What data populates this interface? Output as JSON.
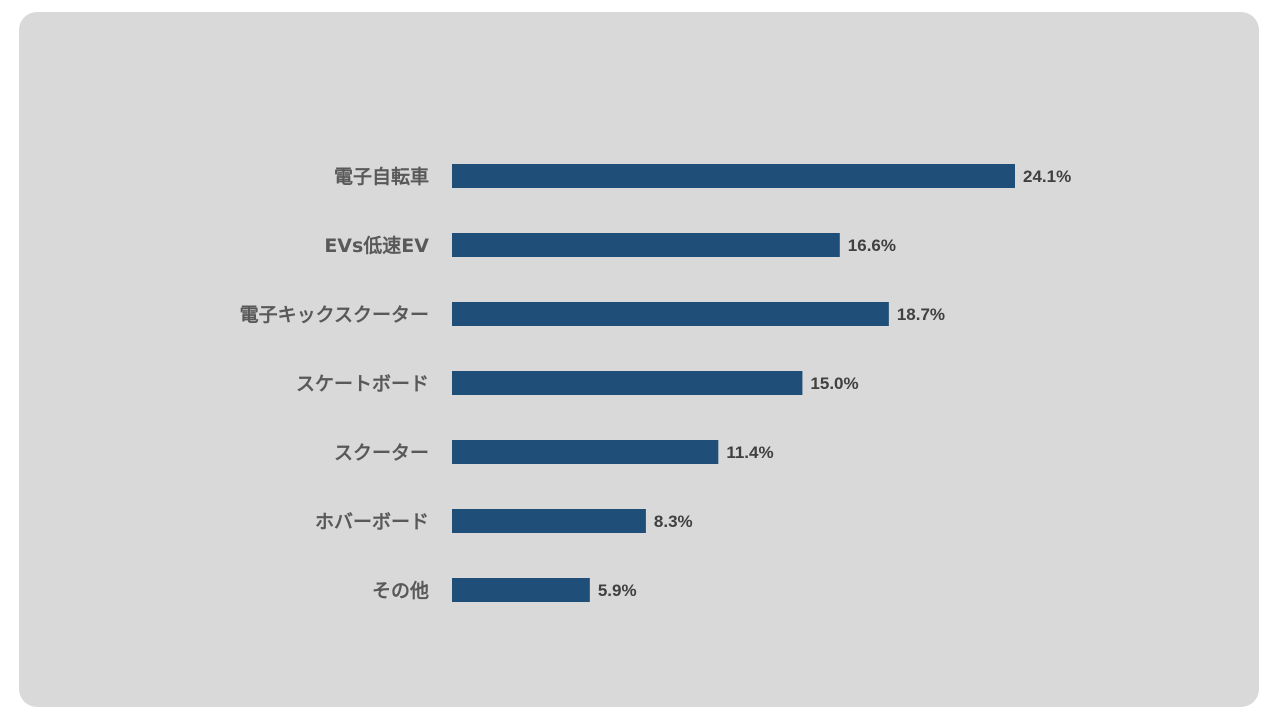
{
  "colors": {
    "background": "#d9d9d9",
    "bar": "#1f4e79",
    "category_text": "#595959",
    "value_text": "#404040"
  },
  "chart_data": {
    "type": "bar",
    "orientation": "horizontal",
    "title": "",
    "xlabel": "",
    "ylabel": "",
    "value_suffix": "%",
    "xlim": [
      0,
      30
    ],
    "grid": false,
    "legend": "none",
    "categories": [
      "電子自転車",
      "EVs低速EV",
      "電子キックスクーター",
      "スケートボード",
      "スクーター",
      "ホバーボード",
      "その他"
    ],
    "values": [
      24.1,
      16.6,
      18.7,
      15.0,
      11.4,
      8.3,
      5.9
    ],
    "value_labels": [
      "24.1%",
      "16.6%",
      "18.7%",
      "15.0%",
      "11.4%",
      "8.3%",
      "5.9%"
    ]
  }
}
